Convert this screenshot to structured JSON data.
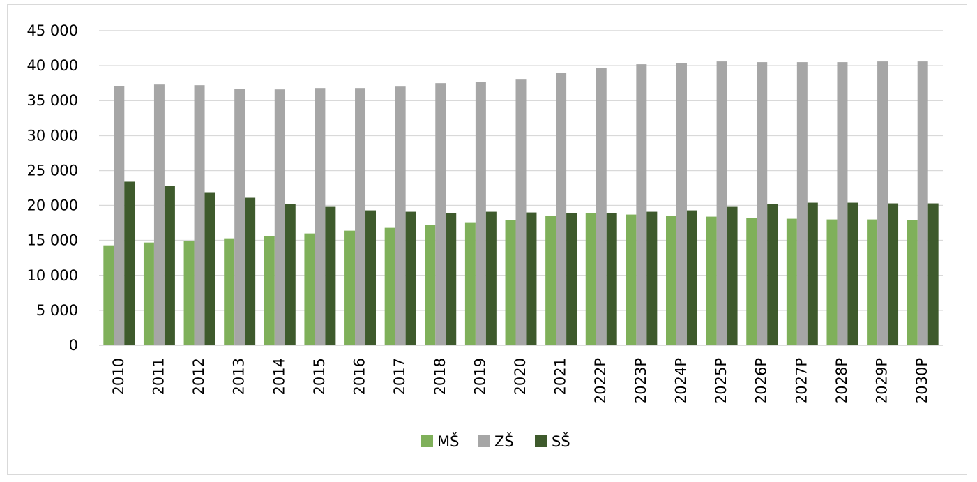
{
  "chart_data": {
    "type": "bar",
    "title": "",
    "xlabel": "",
    "ylabel": "",
    "ylim": [
      0,
      45000
    ],
    "y_ticks": [
      0,
      5000,
      10000,
      15000,
      20000,
      25000,
      30000,
      35000,
      40000,
      45000
    ],
    "y_tick_labels": [
      "0",
      "5 000",
      "10 000",
      "15 000",
      "20 000",
      "25 000",
      "30 000",
      "35 000",
      "40 000",
      "45 000"
    ],
    "grid": true,
    "legend_position": "bottom",
    "categories": [
      "2010",
      "2011",
      "2012",
      "2013",
      "2014",
      "2015",
      "2016",
      "2017",
      "2018",
      "2019",
      "2020",
      "2021",
      "2022P",
      "2023P",
      "2024P",
      "2025P",
      "2026P",
      "2027P",
      "2028P",
      "2029P",
      "2030P"
    ],
    "series": [
      {
        "name": "MŠ",
        "color": "#7fb05a",
        "values": [
          14300,
          14700,
          14900,
          15300,
          15600,
          16000,
          16400,
          16800,
          17200,
          17600,
          17900,
          18500,
          18900,
          18700,
          18500,
          18400,
          18200,
          18100,
          18000,
          18000,
          17900
        ]
      },
      {
        "name": "ZŠ",
        "color": "#a6a6a6",
        "values": [
          37100,
          37300,
          37200,
          36700,
          36600,
          36800,
          36800,
          37000,
          37500,
          37700,
          38100,
          39000,
          39700,
          40200,
          40400,
          40600,
          40500,
          40500,
          40500,
          40600,
          40600
        ]
      },
      {
        "name": "SŠ",
        "color": "#3e5a2c",
        "values": [
          23400,
          22800,
          21900,
          21100,
          20200,
          19800,
          19300,
          19100,
          18900,
          19100,
          19000,
          18900,
          18900,
          19100,
          19300,
          19800,
          20200,
          20400,
          20400,
          20300,
          20300
        ]
      }
    ]
  }
}
